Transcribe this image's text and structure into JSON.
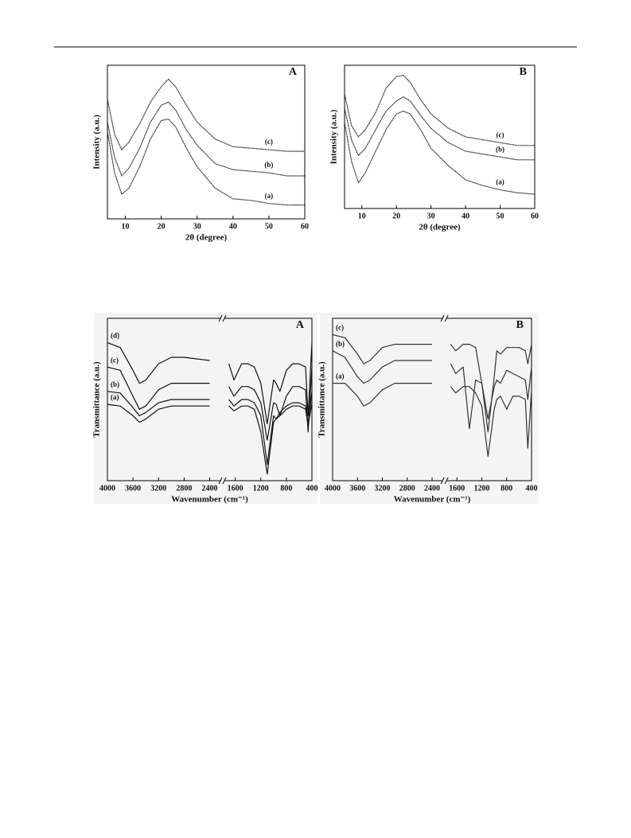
{
  "chart_data": [
    {
      "type": "line",
      "title": "A",
      "x_label": "2θ (degree)",
      "y_label": "Intensity (a.u.)",
      "x": [
        5,
        7,
        9,
        11,
        14,
        17,
        20,
        22,
        24,
        27,
        30,
        35,
        40,
        45,
        50,
        55,
        60
      ],
      "xlim": [
        5,
        60
      ],
      "xticks": [
        10,
        20,
        30,
        40,
        50,
        60
      ],
      "ylim": [
        0,
        100
      ],
      "series": [
        {
          "name": "(a)",
          "color": "#222222",
          "values": [
            57,
            30,
            16,
            20,
            34,
            52,
            64,
            65,
            60,
            46,
            34,
            20,
            13,
            12,
            10,
            9,
            9
          ]
        },
        {
          "name": "(b)",
          "color": "#222222",
          "values": [
            63,
            40,
            28,
            33,
            46,
            63,
            74,
            76,
            71,
            58,
            48,
            36,
            32,
            31,
            30,
            28,
            28
          ]
        },
        {
          "name": "(c)",
          "color": "#222222",
          "values": [
            78,
            55,
            45,
            50,
            62,
            76,
            86,
            91,
            86,
            74,
            63,
            52,
            47,
            46,
            45,
            44,
            44
          ]
        }
      ]
    },
    {
      "type": "line",
      "title": "B",
      "x_label": "2θ (degree)",
      "y_label": "Intensity (a.u.)",
      "x": [
        5,
        7,
        9,
        11,
        14,
        17,
        20,
        22,
        24,
        27,
        30,
        35,
        40,
        45,
        50,
        55,
        60
      ],
      "xlim": [
        5,
        60
      ],
      "xticks": [
        10,
        20,
        30,
        40,
        50,
        60
      ],
      "ylim": [
        0,
        100
      ],
      "series": [
        {
          "name": "(a)",
          "color": "#222222",
          "values": [
            60,
            33,
            18,
            25,
            40,
            55,
            66,
            68,
            66,
            55,
            42,
            30,
            20,
            16,
            13,
            11,
            10
          ]
        },
        {
          "name": "(b)",
          "color": "#222222",
          "values": [
            70,
            48,
            37,
            42,
            55,
            68,
            75,
            78,
            75,
            65,
            56,
            46,
            40,
            38,
            36,
            34,
            34
          ]
        },
        {
          "name": "(c)",
          "color": "#222222",
          "values": [
            80,
            58,
            50,
            55,
            67,
            84,
            92,
            93,
            88,
            76,
            66,
            56,
            50,
            48,
            46,
            44,
            44
          ]
        }
      ]
    },
    {
      "type": "line",
      "title": "A",
      "x_label": "Wavenumber (cm⁻¹)",
      "y_label": "Transmittance (a.u.)",
      "x_break": true,
      "x": [
        4000,
        3800,
        3600,
        3500,
        3400,
        3200,
        3000,
        2800,
        2600,
        2400,
        2000,
        1800,
        1640,
        1500,
        1400,
        1300,
        1200,
        1100,
        1000,
        960,
        900,
        800,
        700,
        600,
        500,
        460,
        400
      ],
      "xlim": [
        4000,
        400
      ],
      "xticks": [
        4000,
        3600,
        3200,
        2800,
        2400,
        1600,
        1200,
        800,
        400
      ],
      "ylim": [
        0,
        100
      ],
      "series": [
        {
          "name": "(a)",
          "color": "#111111",
          "values": [
            47,
            46,
            40,
            36,
            38,
            44,
            46,
            46,
            46,
            46,
            null,
            46,
            43,
            46,
            46,
            44,
            30,
            4,
            36,
            38,
            40,
            44,
            46,
            46,
            44,
            34,
            48
          ]
        },
        {
          "name": "(b)",
          "color": "#111111",
          "values": [
            55,
            54,
            45,
            40,
            42,
            48,
            50,
            50,
            50,
            50,
            null,
            50,
            46,
            50,
            50,
            48,
            40,
            10,
            40,
            38,
            42,
            46,
            48,
            48,
            46,
            35,
            55
          ]
        },
        {
          "name": "(c)",
          "color": "#111111",
          "values": [
            70,
            68,
            52,
            44,
            46,
            56,
            60,
            60,
            60,
            60,
            null,
            58,
            52,
            58,
            58,
            56,
            48,
            25,
            48,
            47,
            40,
            52,
            58,
            58,
            56,
            30,
            70
          ]
        },
        {
          "name": "(d)",
          "color": "#111111",
          "values": [
            85,
            82,
            68,
            60,
            62,
            72,
            76,
            76,
            75,
            74,
            null,
            72,
            62,
            72,
            72,
            70,
            60,
            35,
            62,
            60,
            55,
            68,
            72,
            72,
            70,
            40,
            85
          ]
        }
      ]
    },
    {
      "type": "line",
      "title": "B",
      "x_label": "Wavenumber (cm⁻¹)",
      "y_label": "Transmittance (a.u.)",
      "x_break": true,
      "x": [
        4000,
        3800,
        3600,
        3500,
        3400,
        3200,
        3000,
        2800,
        2600,
        2400,
        2000,
        1800,
        1640,
        1500,
        1400,
        1300,
        1200,
        1100,
        1000,
        960,
        900,
        800,
        700,
        600,
        500,
        460,
        400
      ],
      "xlim": [
        4000,
        400
      ],
      "xticks": [
        4000,
        3600,
        3200,
        2800,
        2400,
        1600,
        1200,
        800,
        400
      ],
      "ylim": [
        0,
        100
      ],
      "series": [
        {
          "name": "(a)",
          "color": "#333333",
          "values": [
            60,
            60,
            52,
            46,
            48,
            56,
            60,
            60,
            60,
            60,
            null,
            58,
            54,
            58,
            58,
            54,
            46,
            15,
            44,
            50,
            52,
            44,
            52,
            52,
            50,
            20,
            56
          ]
        },
        {
          "name": "(b)",
          "color": "#333333",
          "values": [
            80,
            76,
            64,
            60,
            62,
            70,
            74,
            74,
            74,
            74,
            null,
            72,
            66,
            70,
            32,
            62,
            60,
            38,
            58,
            62,
            60,
            68,
            66,
            64,
            62,
            50,
            70
          ]
        },
        {
          "name": "(c)",
          "color": "#333333",
          "values": [
            90,
            88,
            78,
            72,
            74,
            82,
            84,
            84,
            84,
            84,
            null,
            84,
            80,
            84,
            84,
            82,
            60,
            30,
            64,
            80,
            78,
            82,
            82,
            82,
            80,
            72,
            84
          ]
        }
      ]
    }
  ]
}
